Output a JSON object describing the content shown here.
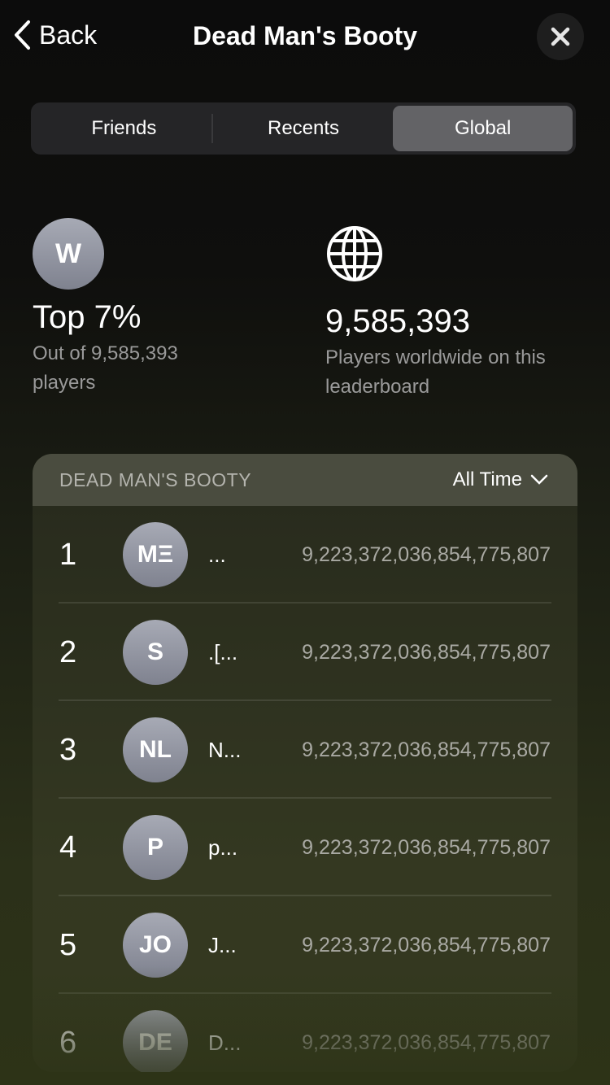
{
  "header": {
    "back_label": "Back",
    "title": "Dead Man's Booty"
  },
  "tabs": [
    {
      "label": "Friends",
      "active": false
    },
    {
      "label": "Recents",
      "active": false
    },
    {
      "label": "Global",
      "active": true
    }
  ],
  "player": {
    "initial": "W",
    "rank_label": "Top 7%",
    "sub": "Out of 9,585,393 players"
  },
  "global": {
    "icon": "globe-icon",
    "count": "9,585,393",
    "sub": "Players worldwide on this leaderboard"
  },
  "leaderboard": {
    "title": "DEAD MAN'S BOOTY",
    "period": "All Time",
    "rows": [
      {
        "rank": "1",
        "initials": "MΞ",
        "name": "...",
        "score": "9,223,372,036,854,775,807"
      },
      {
        "rank": "2",
        "initials": "S",
        "name": ".[...",
        "score": "9,223,372,036,854,775,807"
      },
      {
        "rank": "3",
        "initials": "NL",
        "name": "N...",
        "score": "9,223,372,036,854,775,807"
      },
      {
        "rank": "4",
        "initials": "P",
        "name": "p...",
        "score": "9,223,372,036,854,775,807"
      },
      {
        "rank": "5",
        "initials": "JO",
        "name": "J...",
        "score": "9,223,372,036,854,775,807"
      },
      {
        "rank": "6",
        "initials": "DE",
        "name": "D...",
        "score": "9,223,372,036,854,775,807"
      }
    ]
  }
}
